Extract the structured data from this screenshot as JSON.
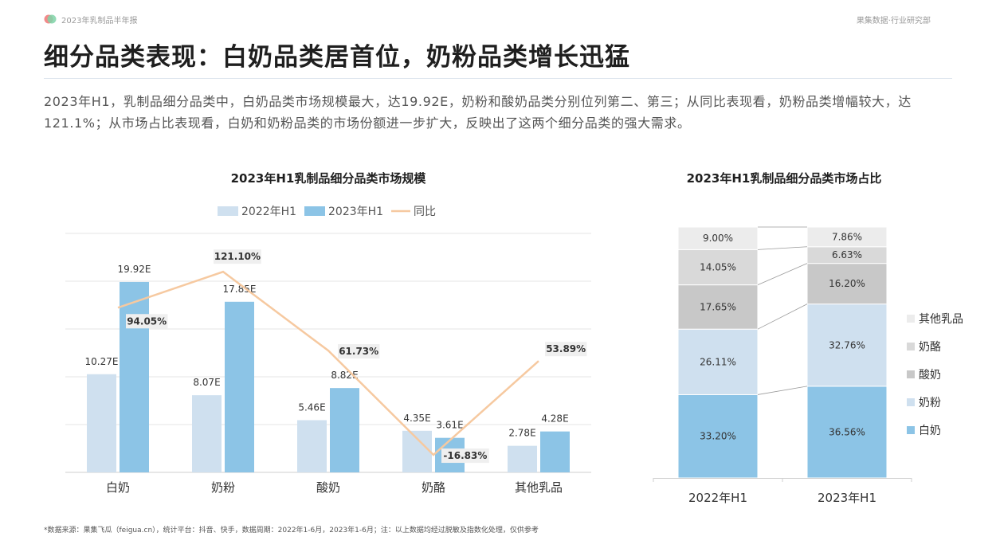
{
  "header": {
    "report_name": "2023年乳制品半年报",
    "department": "果集数据·行业研究部"
  },
  "page": {
    "title": "细分品类表现：白奶品类居首位，奶粉品类增长迅猛",
    "summary": "2023年H1，乳制品细分品类中，白奶品类市场规模最大，达19.92E，奶粉和酸奶品类分别位列第二、第三；从同比表现看，奶粉品类增幅较大，达121.1%；从市场占比表现看，白奶和奶粉品类的市场份额进一步扩大，反映出了这两个细分品类的强大需求。",
    "footnote": "*数据来源：果集飞瓜（feigua.cn），统计平台：抖音、快手，数据周期：2022年1-6月，2023年1-6月；注：以上数据均经过脱敏及指数化处理，仅供参考"
  },
  "colors": {
    "bar_2022": "#cfe0ef",
    "bar_2023": "#8cc4e6",
    "yoy_line": "#f6c9a0",
    "share_other": "#ececec",
    "share_cheese": "#d9d9d9",
    "share_yogurt": "#c8c8c8",
    "share_powder": "#cfe0ef",
    "share_white": "#8cc4e6"
  },
  "chart_data": [
    {
      "type": "bar",
      "title": "2023年H1乳制品细分品类市场规模",
      "categories": [
        "白奶",
        "奶粉",
        "酸奶",
        "奶酪",
        "其他乳品"
      ],
      "series": [
        {
          "name": "2022年H1",
          "values": [
            10.27,
            8.07,
            5.46,
            4.35,
            2.78
          ],
          "labels": [
            "10.27E",
            "8.07E",
            "5.46E",
            "4.35E",
            "2.78E"
          ]
        },
        {
          "name": "2023年H1",
          "values": [
            19.92,
            17.85,
            8.82,
            3.61,
            4.28
          ],
          "labels": [
            "19.92E",
            "17.85E",
            "8.82E",
            "3.61E",
            "4.28E"
          ]
        },
        {
          "name": "同比",
          "type": "line",
          "values": [
            94.05,
            121.1,
            61.73,
            -16.83,
            53.89
          ],
          "labels": [
            "94.05%",
            "121.10%",
            "61.73%",
            "-16.83%",
            "53.89%"
          ]
        }
      ],
      "ylim": [
        0,
        25
      ],
      "y2lim": [
        -30,
        150
      ],
      "grid": true,
      "legend": "top"
    },
    {
      "type": "bar",
      "stacked": true,
      "title": "2023年H1乳制品细分品类市场占比",
      "categories": [
        "2022年H1",
        "2023年H1"
      ],
      "series": [
        {
          "name": "白奶",
          "values": [
            33.2,
            36.56
          ],
          "labels": [
            "33.20%",
            "36.56%"
          ]
        },
        {
          "name": "奶粉",
          "values": [
            26.11,
            32.76
          ],
          "labels": [
            "26.11%",
            "32.76%"
          ]
        },
        {
          "name": "酸奶",
          "values": [
            17.65,
            16.2
          ],
          "labels": [
            "17.65%",
            "16.20%"
          ]
        },
        {
          "name": "奶酪",
          "values": [
            14.05,
            6.63
          ],
          "labels": [
            "14.05%",
            "6.63%"
          ]
        },
        {
          "name": "其他乳品",
          "values": [
            9.0,
            7.86
          ],
          "labels": [
            "9.00%",
            "7.86%"
          ]
        }
      ],
      "ylim": [
        0,
        100
      ],
      "legend": "right"
    }
  ]
}
